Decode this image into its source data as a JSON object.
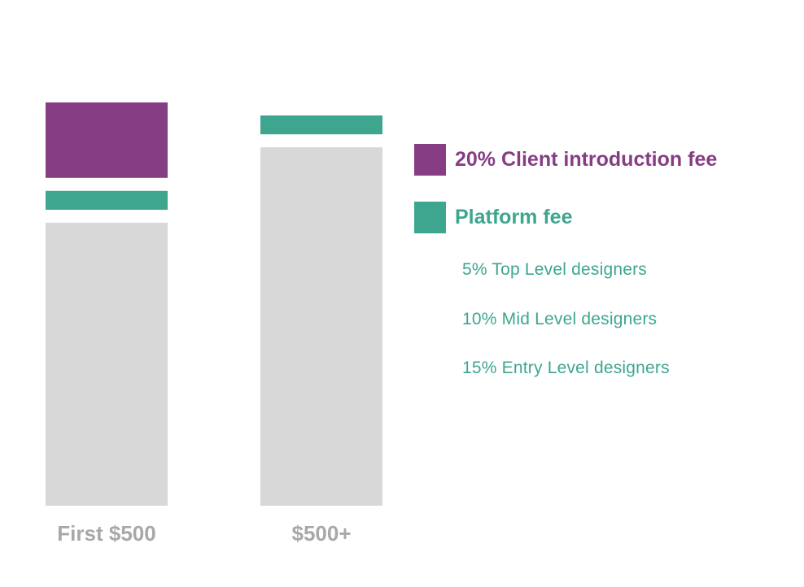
{
  "colors": {
    "client_fee": "#873d84",
    "platform_fee": "#3ea68f",
    "base": "#d8d8d8",
    "axis_label": "#a8a8a8"
  },
  "legend": {
    "client_fee": "20% Client introduction fee",
    "platform_fee": "Platform fee",
    "platform_tiers": [
      "5% Top Level designers",
      "10% Mid Level designers",
      "15% Entry Level designers"
    ]
  },
  "chart_data": {
    "type": "bar",
    "stacked": true,
    "categories": [
      "First $500",
      "$500+"
    ],
    "series": [
      {
        "key": "client_fee",
        "name": "20% Client introduction fee",
        "values": [
          20,
          0
        ]
      },
      {
        "key": "platform_fee",
        "name": "Platform fee",
        "values": [
          5,
          5
        ]
      },
      {
        "key": "base",
        "values": [
          75,
          95
        ]
      }
    ],
    "ylim": [
      0,
      100
    ],
    "grid": false,
    "legend_position": "right"
  }
}
